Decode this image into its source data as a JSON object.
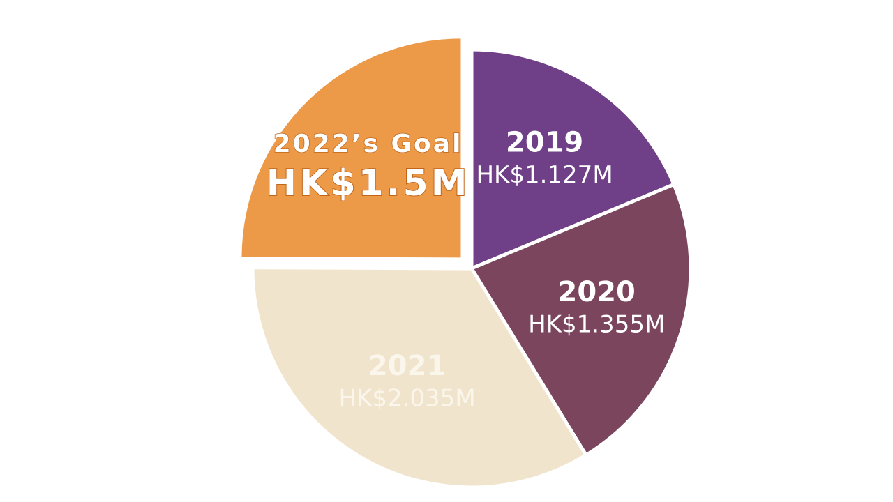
{
  "chart_data": {
    "type": "pie",
    "categories": [
      "2019",
      "2020",
      "2021",
      "2022’s Goal"
    ],
    "values": [
      1.127,
      1.355,
      2.035,
      1.5
    ],
    "value_labels": [
      "HK$1.127M",
      "HK$1.355M",
      "HK$2.035M",
      "HK$1.5M"
    ],
    "colors": [
      "#6f3f87",
      "#7b465d",
      "#f1e4cc",
      "#ec9a47"
    ],
    "exploded": [
      false,
      false,
      false,
      true
    ]
  }
}
